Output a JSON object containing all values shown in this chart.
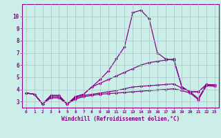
{
  "xlabel": "Windchill (Refroidissement éolien,°C)",
  "background_color": "#cceee8",
  "line_color": "#880088",
  "grid_color": "#aacccc",
  "xlim": [
    -0.5,
    23.5
  ],
  "ylim": [
    2.5,
    11.0
  ],
  "xtick_labels": [
    "0",
    "1",
    "2",
    "3",
    "4",
    "5",
    "6",
    "7",
    "8",
    "9",
    "10",
    "11",
    "12",
    "13",
    "14",
    "15",
    "16",
    "17",
    "18",
    "19",
    "20",
    "21",
    "22",
    "23"
  ],
  "ytick_labels": [
    "3",
    "4",
    "5",
    "6",
    "7",
    "8",
    "9",
    "10"
  ],
  "ytick_vals": [
    3,
    4,
    5,
    6,
    7,
    8,
    9,
    10
  ],
  "lines": [
    {
      "x": [
        0,
        1,
        2,
        3,
        4,
        5,
        6,
        7,
        8,
        9,
        10,
        11,
        12,
        13,
        14,
        15,
        16,
        17,
        18,
        19,
        20,
        21,
        22,
        23
      ],
      "y": [
        3.7,
        3.6,
        2.8,
        3.5,
        3.5,
        2.8,
        3.4,
        3.6,
        4.2,
        4.8,
        5.5,
        6.5,
        7.5,
        10.3,
        10.5,
        9.8,
        7.0,
        6.5,
        6.4,
        4.2,
        3.8,
        3.8,
        4.4,
        4.35
      ]
    },
    {
      "x": [
        0,
        1,
        2,
        3,
        4,
        5,
        6,
        7,
        8,
        9,
        10,
        11,
        12,
        13,
        14,
        15,
        16,
        17,
        18,
        19,
        20,
        21,
        22,
        23
      ],
      "y": [
        3.7,
        3.6,
        2.8,
        3.5,
        3.5,
        2.8,
        3.4,
        3.6,
        4.2,
        4.5,
        4.8,
        5.1,
        5.4,
        5.7,
        6.0,
        6.2,
        6.3,
        6.4,
        6.5,
        4.2,
        3.8,
        3.8,
        4.4,
        4.35
      ]
    },
    {
      "x": [
        0,
        1,
        2,
        3,
        4,
        5,
        6,
        7,
        8,
        9,
        10,
        11,
        12,
        13,
        14,
        15,
        16,
        17,
        18,
        19,
        20,
        21,
        22,
        23
      ],
      "y": [
        3.7,
        3.6,
        2.8,
        3.4,
        3.4,
        2.8,
        3.3,
        3.5,
        3.6,
        3.7,
        3.8,
        3.9,
        4.05,
        4.2,
        4.25,
        4.3,
        4.35,
        4.4,
        4.45,
        4.1,
        3.8,
        3.25,
        4.4,
        4.35
      ]
    },
    {
      "x": [
        0,
        1,
        2,
        3,
        4,
        5,
        6,
        7,
        8,
        9,
        10,
        11,
        12,
        13,
        14,
        15,
        16,
        17,
        18,
        19,
        20,
        21,
        22,
        23
      ],
      "y": [
        3.7,
        3.6,
        2.8,
        3.3,
        3.3,
        2.8,
        3.2,
        3.4,
        3.5,
        3.6,
        3.65,
        3.7,
        3.75,
        3.8,
        3.85,
        3.9,
        3.95,
        4.0,
        4.05,
        3.9,
        3.7,
        3.15,
        4.3,
        4.25
      ]
    }
  ]
}
